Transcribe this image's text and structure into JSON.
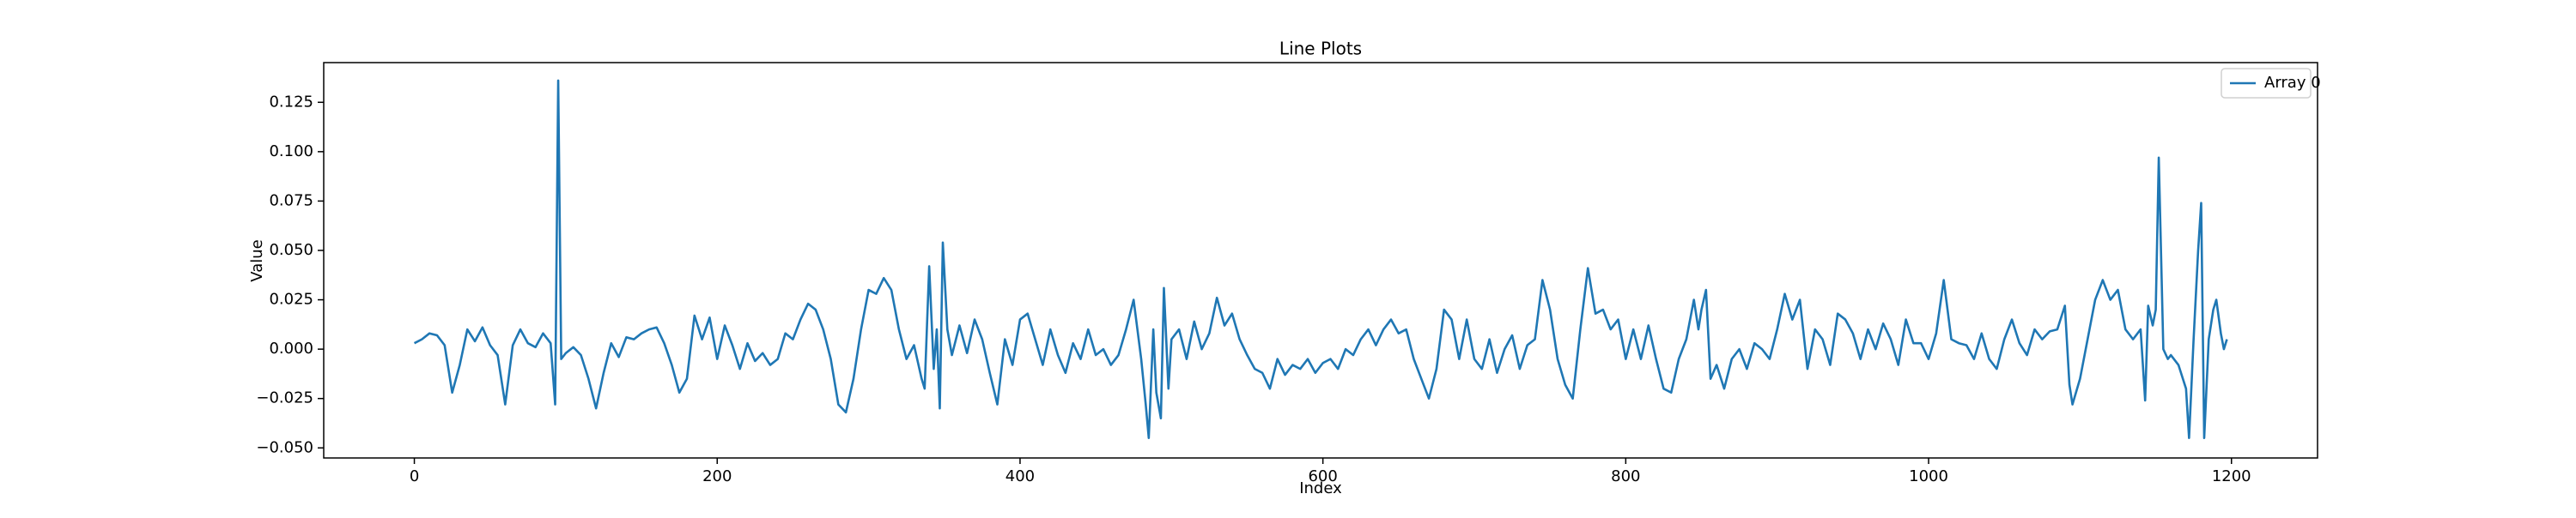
{
  "chart_data": {
    "type": "line",
    "title": "Line Plots",
    "x_label": "Index",
    "y_label": "Value",
    "x": [
      0,
      5,
      10,
      15,
      20,
      25,
      30,
      35,
      40,
      45,
      50,
      55,
      60,
      65,
      70,
      75,
      80,
      85,
      90,
      93,
      95,
      97,
      100,
      105,
      110,
      115,
      120,
      125,
      130,
      135,
      140,
      145,
      150,
      155,
      160,
      165,
      170,
      175,
      180,
      185,
      190,
      195,
      200,
      205,
      210,
      215,
      220,
      225,
      230,
      235,
      240,
      245,
      250,
      255,
      260,
      265,
      270,
      275,
      280,
      285,
      290,
      295,
      300,
      305,
      310,
      315,
      320,
      325,
      330,
      335,
      337,
      340,
      343,
      345,
      347,
      349,
      352,
      355,
      360,
      365,
      370,
      375,
      380,
      385,
      390,
      395,
      400,
      405,
      410,
      415,
      420,
      425,
      430,
      435,
      440,
      445,
      450,
      455,
      460,
      465,
      470,
      475,
      480,
      483,
      485,
      488,
      490,
      493,
      495,
      498,
      500,
      505,
      510,
      515,
      520,
      525,
      530,
      535,
      540,
      545,
      550,
      555,
      560,
      565,
      570,
      575,
      580,
      585,
      590,
      595,
      600,
      605,
      610,
      615,
      620,
      625,
      630,
      635,
      640,
      645,
      650,
      655,
      660,
      665,
      670,
      675,
      680,
      685,
      690,
      695,
      700,
      705,
      710,
      715,
      720,
      725,
      730,
      735,
      740,
      745,
      750,
      755,
      760,
      765,
      770,
      775,
      780,
      785,
      790,
      795,
      800,
      805,
      810,
      815,
      820,
      825,
      830,
      835,
      840,
      845,
      848,
      850,
      853,
      856,
      860,
      865,
      870,
      875,
      880,
      885,
      890,
      895,
      900,
      905,
      910,
      915,
      920,
      925,
      930,
      935,
      940,
      945,
      950,
      955,
      960,
      965,
      970,
      975,
      980,
      985,
      990,
      995,
      1000,
      1005,
      1010,
      1015,
      1020,
      1025,
      1030,
      1035,
      1040,
      1045,
      1050,
      1055,
      1060,
      1065,
      1070,
      1075,
      1080,
      1085,
      1090,
      1093,
      1095,
      1100,
      1105,
      1110,
      1115,
      1120,
      1125,
      1130,
      1135,
      1140,
      1143,
      1145,
      1148,
      1150,
      1152,
      1155,
      1158,
      1160,
      1165,
      1170,
      1172,
      1175,
      1178,
      1180,
      1182,
      1185,
      1188,
      1190,
      1193,
      1195,
      1197
    ],
    "series": [
      {
        "name": "Array 0",
        "color": "#1f77b4",
        "values": [
          0.003,
          0.005,
          0.008,
          0.007,
          0.002,
          -0.022,
          -0.008,
          0.01,
          0.004,
          0.011,
          0.002,
          -0.003,
          -0.028,
          0.002,
          0.01,
          0.003,
          0.001,
          0.008,
          0.003,
          -0.028,
          0.136,
          -0.005,
          -0.002,
          0.001,
          -0.003,
          -0.015,
          -0.03,
          -0.012,
          0.003,
          -0.004,
          0.006,
          0.005,
          0.008,
          0.01,
          0.011,
          0.003,
          -0.008,
          -0.022,
          -0.015,
          0.017,
          0.005,
          0.016,
          -0.005,
          0.012,
          0.002,
          -0.01,
          0.003,
          -0.006,
          -0.002,
          -0.008,
          -0.005,
          0.008,
          0.005,
          0.015,
          0.023,
          0.02,
          0.01,
          -0.005,
          -0.028,
          -0.032,
          -0.015,
          0.01,
          0.03,
          0.028,
          0.036,
          0.03,
          0.01,
          -0.005,
          0.002,
          -0.015,
          -0.02,
          0.042,
          -0.01,
          0.01,
          -0.03,
          0.054,
          0.01,
          -0.003,
          0.012,
          -0.002,
          0.015,
          0.005,
          -0.012,
          -0.028,
          0.005,
          -0.008,
          0.015,
          0.018,
          0.005,
          -0.008,
          0.01,
          -0.003,
          -0.012,
          0.003,
          -0.005,
          0.01,
          -0.003,
          0.0,
          -0.008,
          -0.003,
          0.01,
          0.025,
          -0.005,
          -0.028,
          -0.045,
          0.01,
          -0.022,
          -0.035,
          0.031,
          -0.02,
          0.005,
          0.01,
          -0.005,
          0.014,
          0.0,
          0.008,
          0.026,
          0.012,
          0.018,
          0.005,
          -0.003,
          -0.01,
          -0.012,
          -0.02,
          -0.005,
          -0.013,
          -0.008,
          -0.01,
          -0.005,
          -0.012,
          -0.007,
          -0.005,
          -0.01,
          0.0,
          -0.003,
          0.005,
          0.01,
          0.002,
          0.01,
          0.015,
          0.008,
          0.01,
          -0.005,
          -0.015,
          -0.025,
          -0.01,
          0.02,
          0.015,
          -0.005,
          0.015,
          -0.005,
          -0.01,
          0.005,
          -0.012,
          0.0,
          0.007,
          -0.01,
          0.002,
          0.005,
          0.035,
          0.02,
          -0.005,
          -0.018,
          -0.025,
          0.01,
          0.041,
          0.018,
          0.02,
          0.01,
          0.015,
          -0.005,
          0.01,
          -0.005,
          0.012,
          -0.005,
          -0.02,
          -0.022,
          -0.005,
          0.005,
          0.025,
          0.01,
          0.02,
          0.03,
          -0.015,
          -0.008,
          -0.02,
          -0.005,
          0.0,
          -0.01,
          0.003,
          0.0,
          -0.005,
          0.01,
          0.028,
          0.015,
          0.025,
          -0.01,
          0.01,
          0.005,
          -0.008,
          0.018,
          0.015,
          0.008,
          -0.005,
          0.01,
          0.0,
          0.013,
          0.005,
          -0.008,
          0.015,
          0.003,
          0.003,
          -0.005,
          0.008,
          0.035,
          0.005,
          0.003,
          0.002,
          -0.005,
          0.008,
          -0.005,
          -0.01,
          0.005,
          0.015,
          0.003,
          -0.003,
          0.01,
          0.005,
          0.009,
          0.01,
          0.022,
          -0.018,
          -0.028,
          -0.015,
          0.005,
          0.025,
          0.035,
          0.025,
          0.03,
          0.01,
          0.005,
          0.01,
          -0.026,
          0.022,
          0.012,
          0.02,
          0.097,
          0.0,
          -0.005,
          -0.003,
          -0.008,
          -0.02,
          -0.045,
          0.005,
          0.05,
          0.074,
          -0.045,
          0.005,
          0.02,
          0.025,
          0.008,
          0.0,
          0.005
        ]
      }
    ],
    "xlim": [
      -59.85,
      1256.85
    ],
    "ylim": [
      -0.0551,
      0.1451
    ],
    "xticks": [
      0,
      200,
      400,
      600,
      800,
      1000,
      1200
    ],
    "yticks": [
      {
        "value": -0.05,
        "label": "−0.050"
      },
      {
        "value": -0.025,
        "label": "−0.025"
      },
      {
        "value": 0,
        "label": "0.000"
      },
      0.025,
      {
        "value": 0.05,
        "label": "0.050"
      },
      0.075,
      {
        "value": 0.1,
        "label": "0.100"
      },
      0.125
    ],
    "legend": "upper right"
  }
}
